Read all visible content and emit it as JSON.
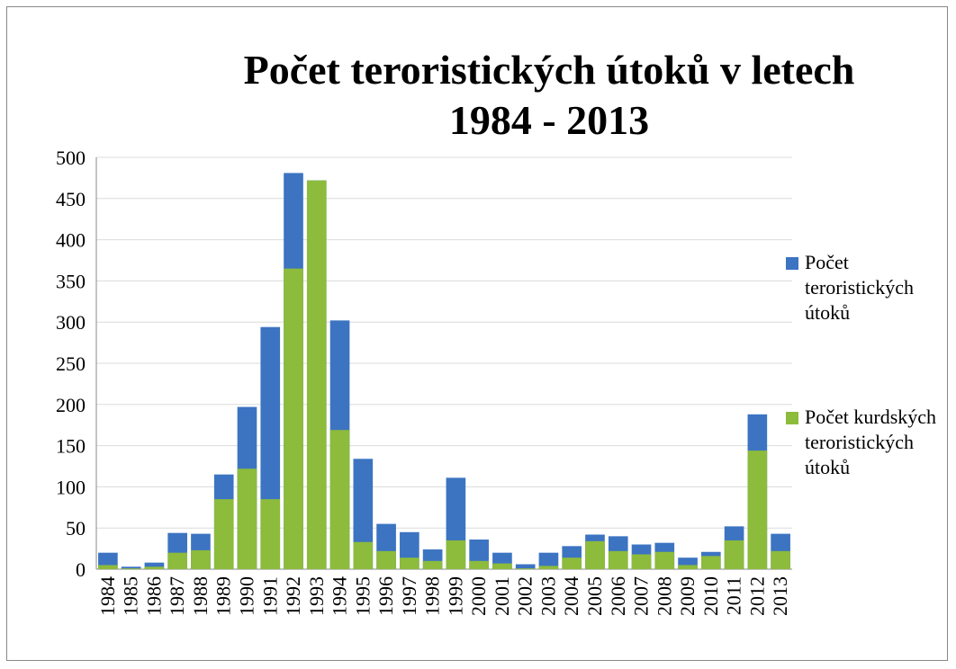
{
  "chart_data": {
    "type": "bar",
    "title": "Počet teroristických útoků v letech 1984 - 2013",
    "categories": [
      "1984",
      "1985",
      "1986",
      "1987",
      "1988",
      "1989",
      "1990",
      "1991",
      "1992",
      "1993",
      "1994",
      "1995",
      "1996",
      "1997",
      "1998",
      "1999",
      "2000",
      "2001",
      "2002",
      "2003",
      "2004",
      "2005",
      "2006",
      "2007",
      "2008",
      "2009",
      "2010",
      "2011",
      "2012",
      "2013"
    ],
    "series": [
      {
        "name": "Počet teroristických útoků",
        "color": "#3c74c2",
        "values": [
          20,
          3,
          8,
          44,
          43,
          115,
          197,
          294,
          481,
          472,
          302,
          134,
          55,
          45,
          24,
          111,
          36,
          20,
          6,
          20,
          28,
          42,
          40,
          30,
          32,
          14,
          21,
          52,
          188,
          43
        ]
      },
      {
        "name": "Počet kurdských teroristických útoků",
        "color": "#8dbb3c",
        "values": [
          5,
          1,
          3,
          20,
          23,
          85,
          122,
          85,
          365,
          472,
          169,
          33,
          22,
          14,
          10,
          35,
          10,
          7,
          1,
          4,
          14,
          34,
          22,
          18,
          21,
          5,
          16,
          35,
          144,
          22
        ]
      }
    ],
    "ylim": [
      0,
      500
    ],
    "yticks": [
      0,
      50,
      100,
      150,
      200,
      250,
      300,
      350,
      400,
      450,
      500
    ],
    "grid": true,
    "legend": "right"
  }
}
